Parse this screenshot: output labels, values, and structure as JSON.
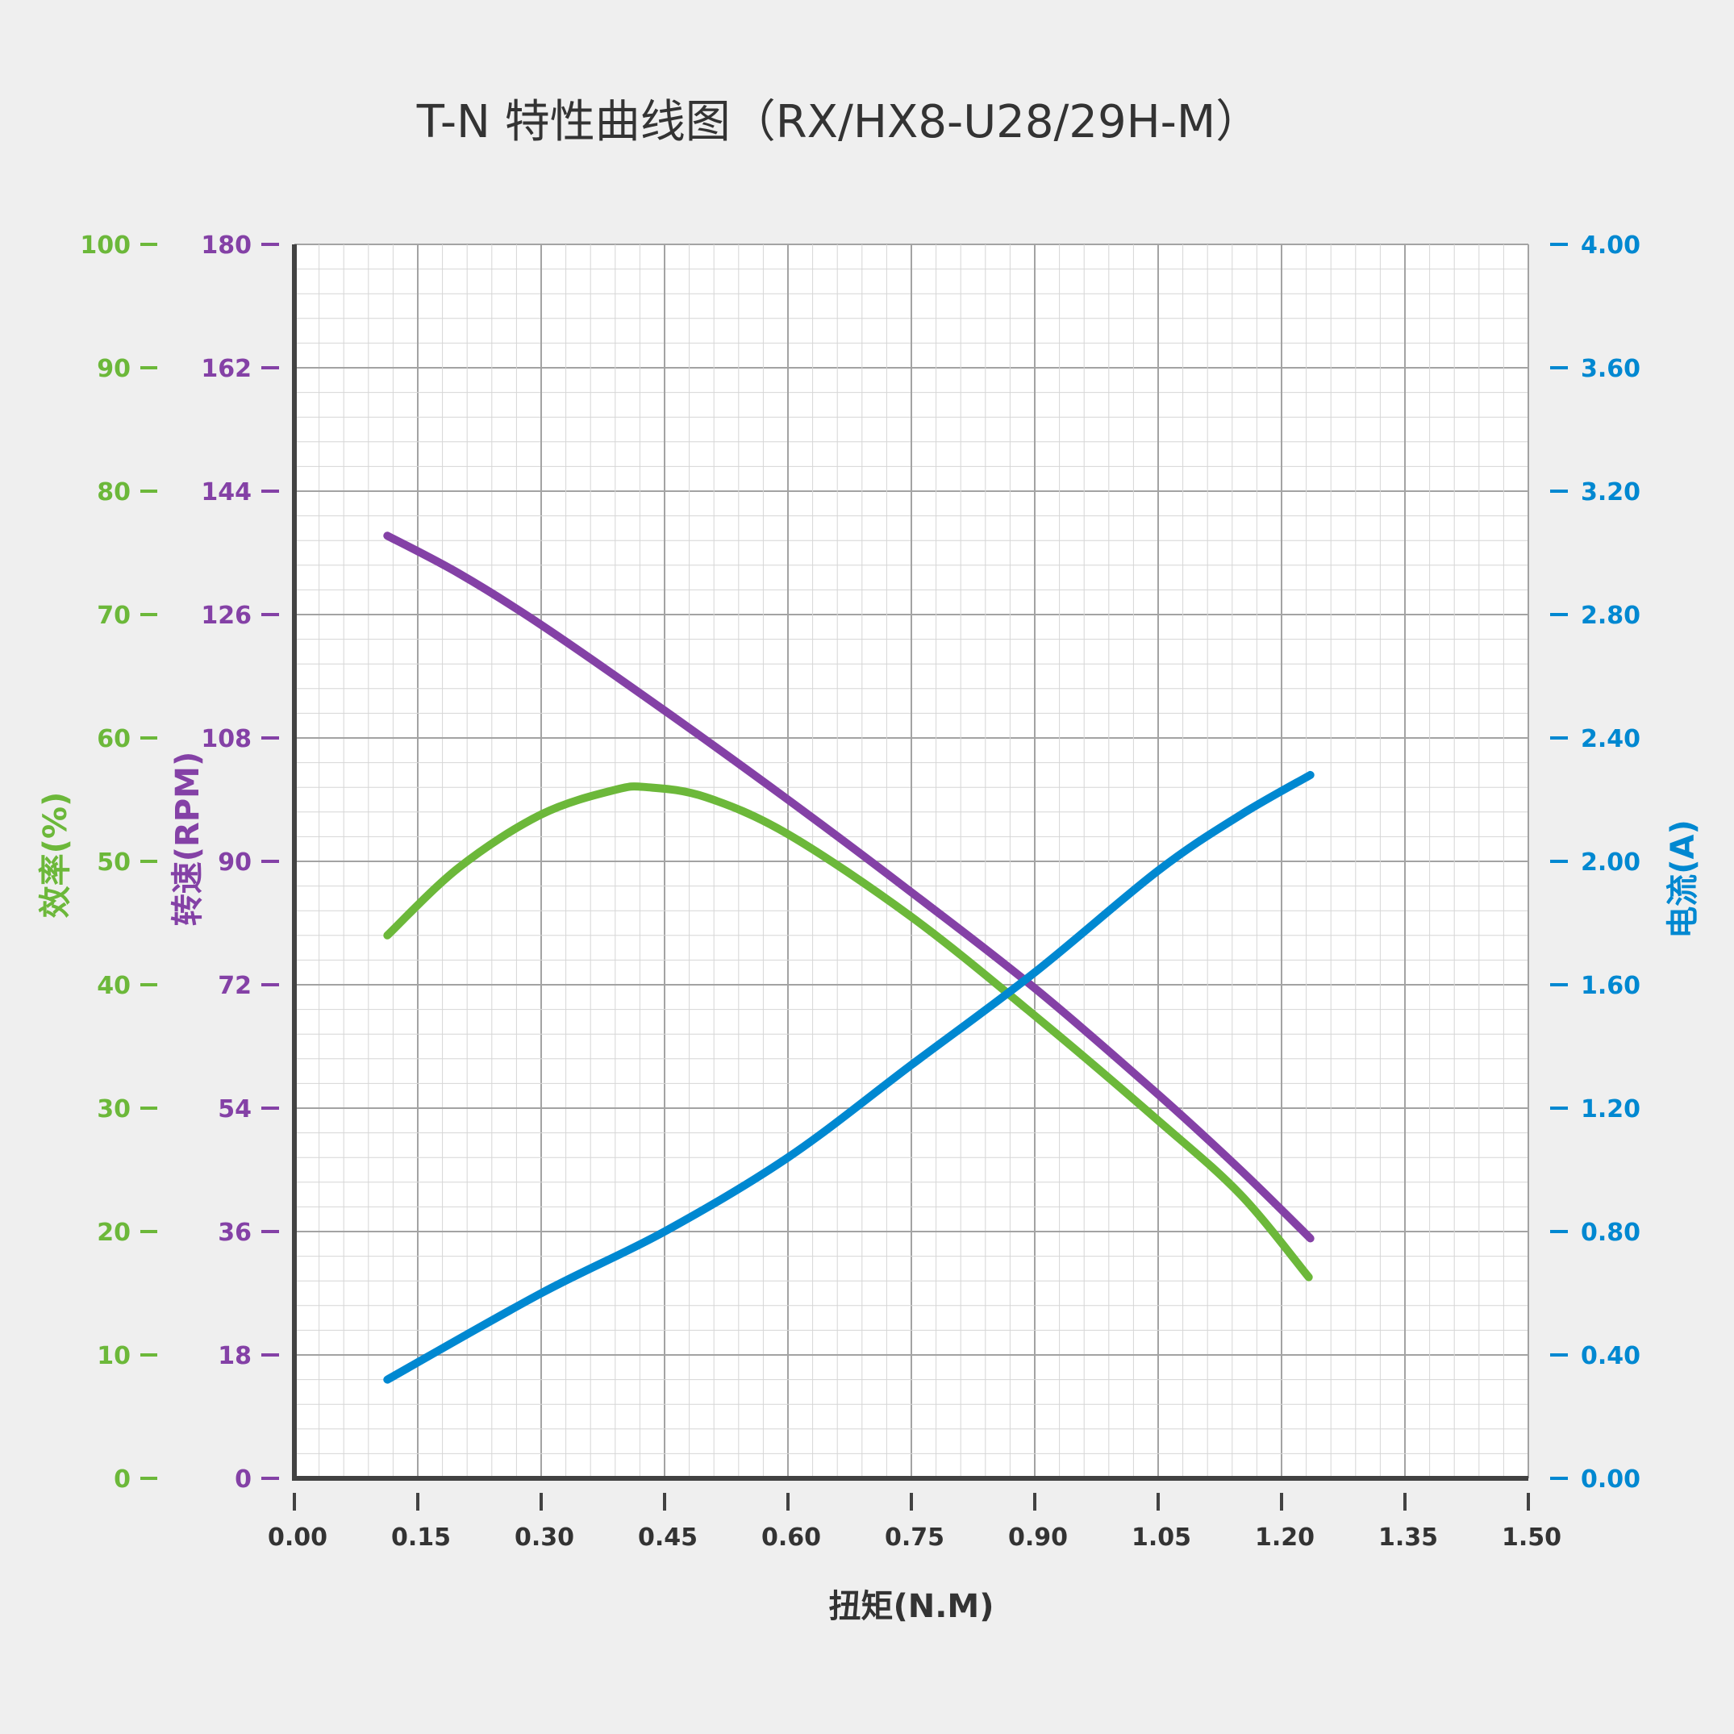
{
  "chart_data": {
    "type": "line",
    "title": "T-N 特性曲线图（RX/HX8-U28/29H-M）",
    "xlabel": "扭矩(N.M)",
    "x_range": [
      0,
      1.5
    ],
    "x_ticks": [
      "0.00",
      "0.15",
      "0.30",
      "0.45",
      "0.60",
      "0.75",
      "0.90",
      "1.05",
      "1.20",
      "1.35",
      "1.50"
    ],
    "grid": true,
    "colors": {
      "efficiency": "#6cb83a",
      "speed": "#8441a6",
      "current": "#0088d1",
      "axis": "#424242",
      "text": "#333333"
    },
    "y_axes": {
      "efficiency": {
        "label": "效率(%)",
        "range": [
          0,
          100
        ],
        "ticks": [
          "0",
          "10",
          "20",
          "30",
          "40",
          "50",
          "60",
          "70",
          "80",
          "90",
          "100"
        ]
      },
      "speed": {
        "label": "转速(RPM)",
        "range": [
          0,
          180
        ],
        "ticks": [
          "0",
          "18",
          "36",
          "54",
          "72",
          "90",
          "108",
          "126",
          "144",
          "162",
          "180"
        ]
      },
      "current": {
        "label": "电流(A)",
        "range": [
          0,
          4
        ],
        "ticks": [
          "0.00",
          "0.40",
          "0.80",
          "1.20",
          "1.60",
          "2.00",
          "2.40",
          "2.80",
          "3.20",
          "3.60",
          "4.00"
        ]
      }
    },
    "series": [
      {
        "axis": "speed",
        "color": "#8441a6",
        "x": [
          0.113,
          0.2,
          0.3,
          0.45,
          0.6,
          0.75,
          0.9,
          1.05,
          1.15,
          1.235
        ],
        "y": [
          137.5,
          132,
          124.5,
          112,
          99,
          85.5,
          71.5,
          56,
          45,
          35
        ]
      },
      {
        "axis": "efficiency",
        "color": "#6cb83a",
        "x": [
          0.113,
          0.2,
          0.3,
          0.39,
          0.43,
          0.5,
          0.6,
          0.75,
          0.9,
          1.05,
          1.15,
          1.233
        ],
        "y": [
          44,
          49.5,
          53.8,
          55.8,
          56,
          55.2,
          52.2,
          45.5,
          37.5,
          29,
          23,
          16.3
        ]
      },
      {
        "axis": "current",
        "color": "#0088d1",
        "x": [
          0.113,
          0.3,
          0.45,
          0.6,
          0.75,
          0.9,
          1.05,
          1.15,
          1.235
        ],
        "y": [
          0.32,
          0.6,
          0.8,
          1.04,
          1.34,
          1.64,
          1.97,
          2.15,
          2.28
        ]
      }
    ]
  }
}
